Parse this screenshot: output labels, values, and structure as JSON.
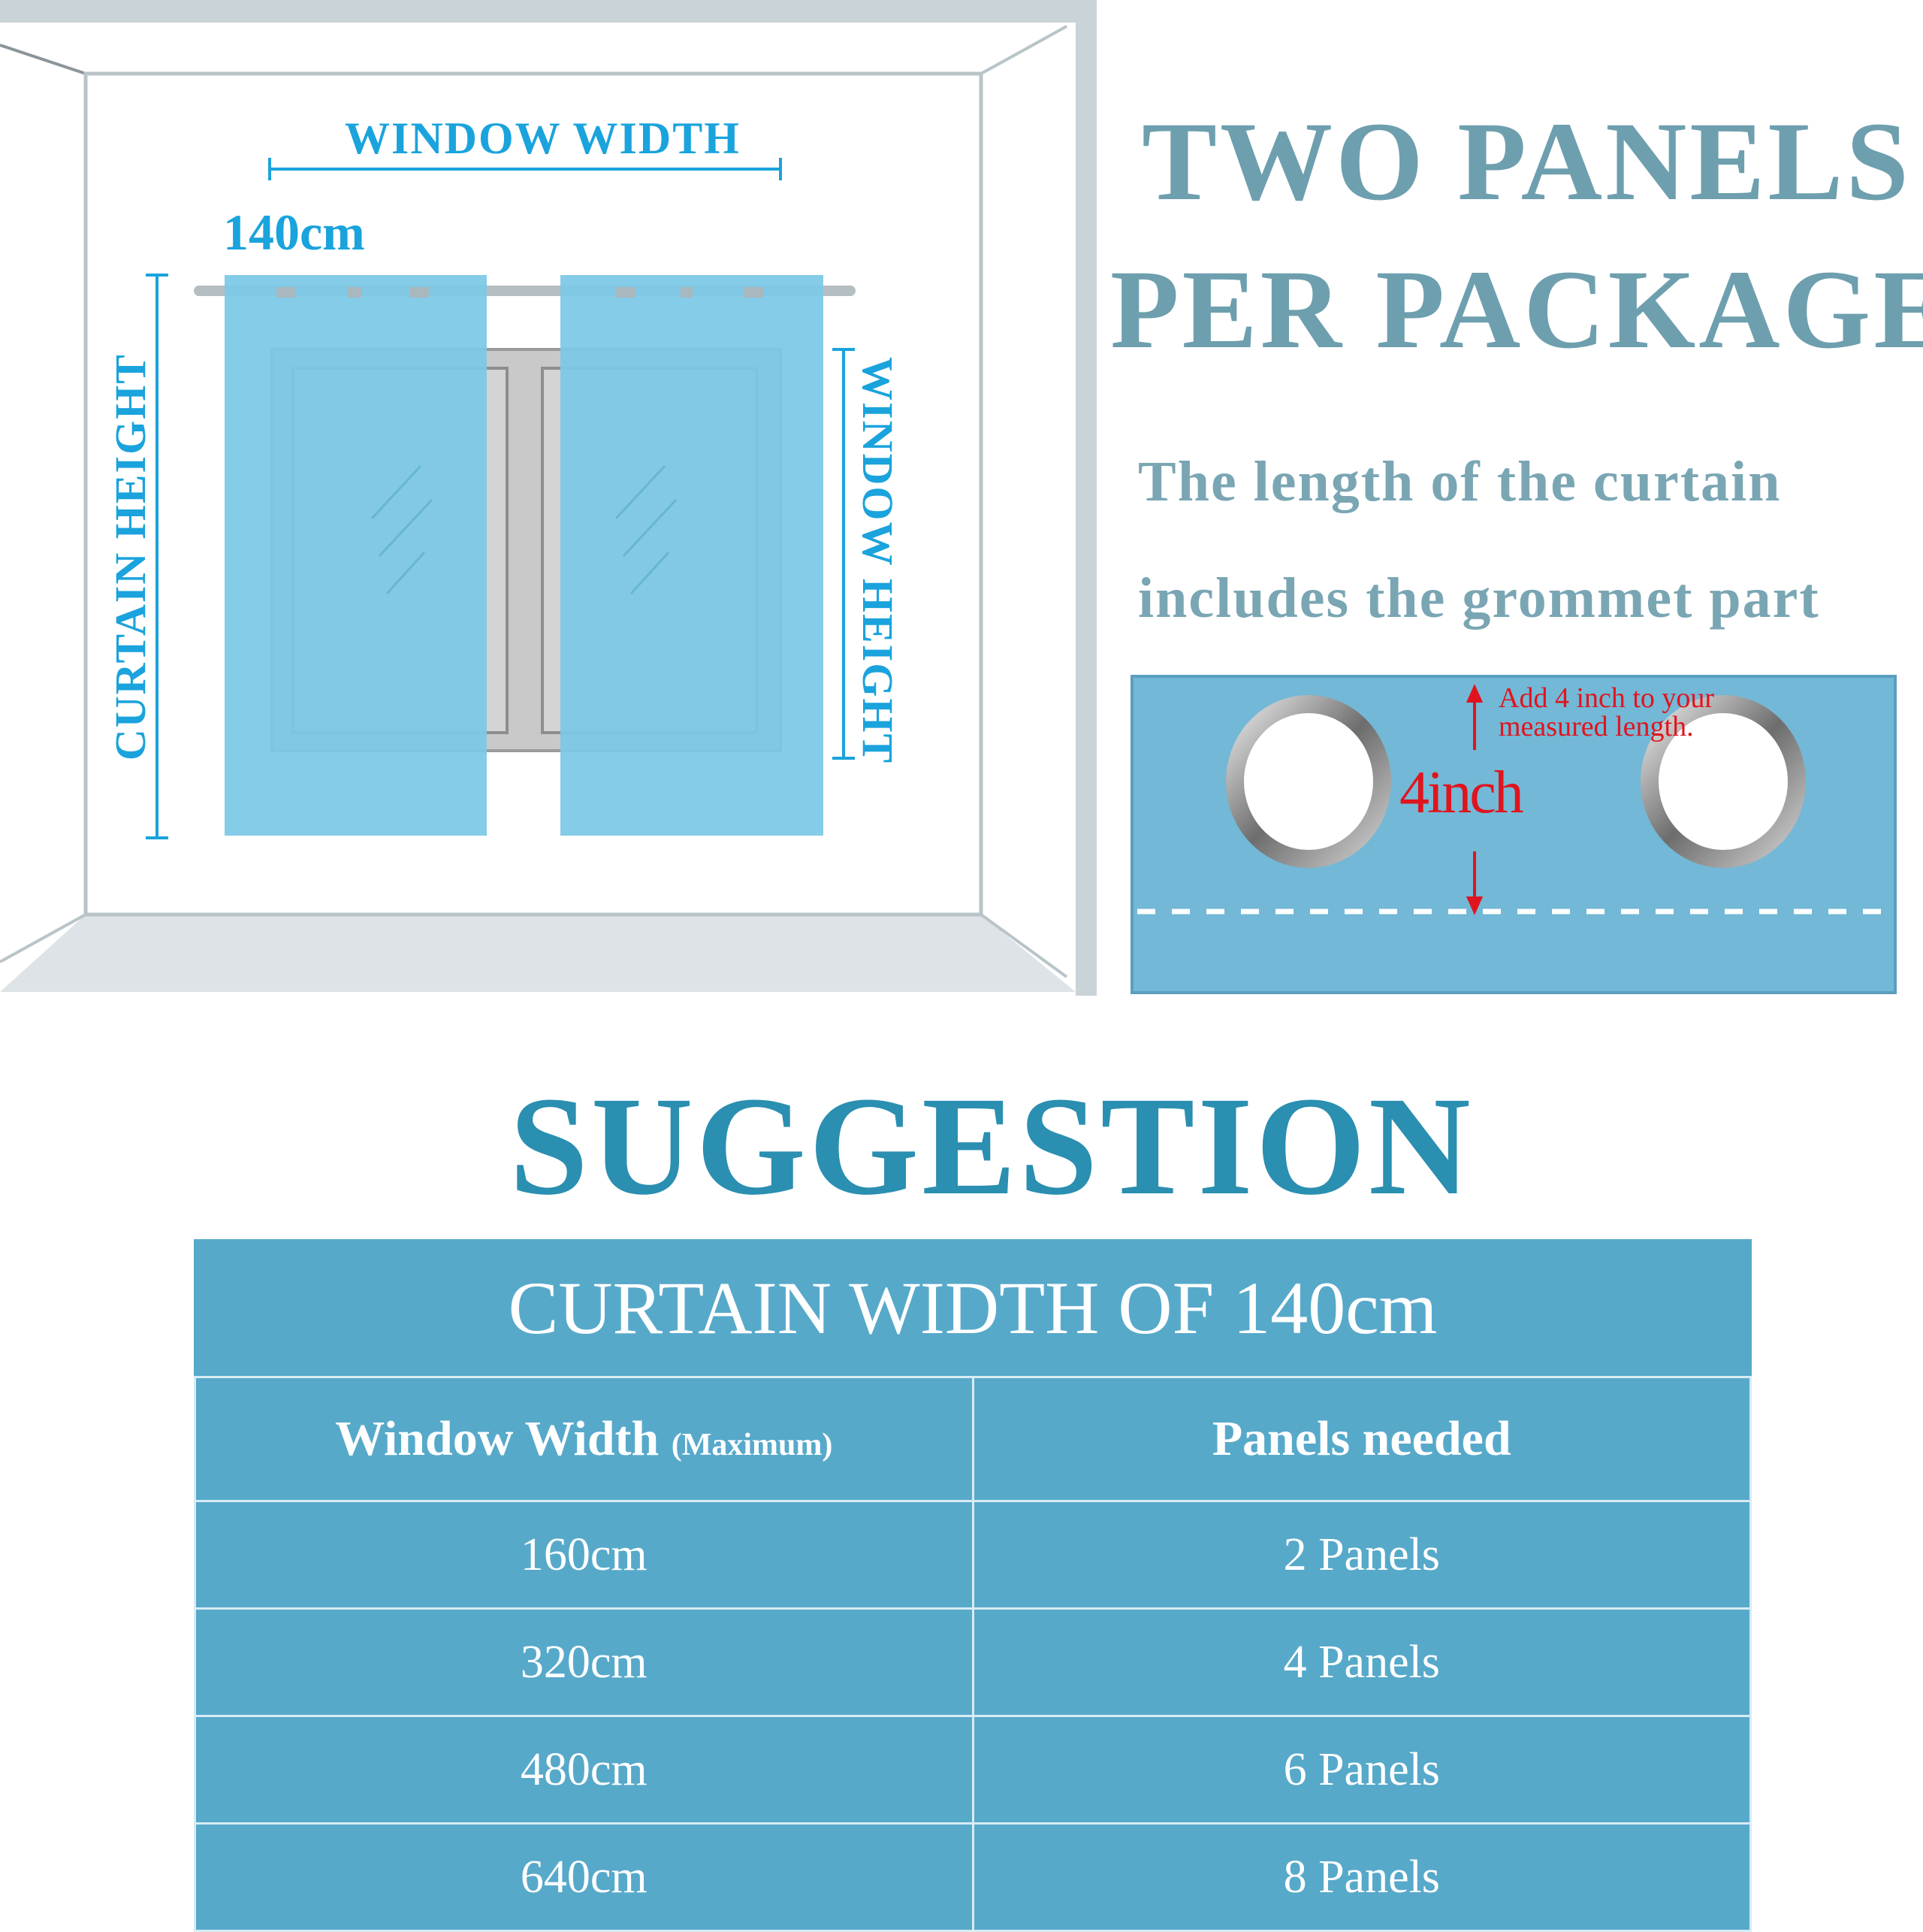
{
  "diagram": {
    "window_width_label": "WINDOW WIDTH",
    "curtain_width_value": "140cm",
    "curtain_height_label": "CURTAIN HEIGHT",
    "window_height_label": "WINDOW HEIGHT"
  },
  "headline": {
    "line1": "TWO PANELS",
    "line2": "PER PACKAGE"
  },
  "note": {
    "line1": "The length of the curtain",
    "line2": "includes the grommet  part"
  },
  "grommet_detail": {
    "measure_label": "4inch",
    "hint_line1": "Add 4 inch to your",
    "hint_line2": "measured length."
  },
  "suggestion": {
    "title": "SUGGESTION",
    "table_title": "CURTAIN WIDTH OF 140cm",
    "col1_header": "Window Width",
    "col1_header_note": "(Maximum)",
    "col2_header": "Panels needed",
    "rows": [
      {
        "width": "160cm",
        "panels": "2 Panels"
      },
      {
        "width": "320cm",
        "panels": "4 Panels"
      },
      {
        "width": "480cm",
        "panels": "6 Panels"
      },
      {
        "width": "640cm",
        "panels": "8 Panels"
      }
    ]
  },
  "colors": {
    "accent_blue": "#1aa3dc",
    "curtain": "#7cc8e6",
    "headline": "#6e9fae",
    "suggestion": "#2a8fb0",
    "table": "#57a9ca",
    "annotation_red": "#e0141e"
  }
}
